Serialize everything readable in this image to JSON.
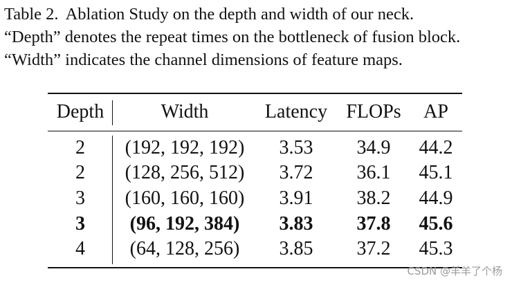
{
  "caption": {
    "label": "Table 2.",
    "line1": "Ablation Study on the depth and width of our neck.",
    "line2": "“Depth” denotes the repeat times on the bottleneck of fusion block.",
    "line3": "“Width” indicates the channel dimensions of feature maps."
  },
  "table": {
    "headers": [
      "Depth",
      "Width",
      "Latency",
      "FLOPs",
      "AP"
    ],
    "rows": [
      {
        "depth": "2",
        "width": "(192, 192, 192)",
        "latency": "3.53",
        "flops": "34.9",
        "ap": "44.2",
        "bold": false
      },
      {
        "depth": "2",
        "width": "(128, 256, 512)",
        "latency": "3.72",
        "flops": "36.1",
        "ap": "45.1",
        "bold": false
      },
      {
        "depth": "3",
        "width": "(160, 160, 160)",
        "latency": "3.91",
        "flops": "38.2",
        "ap": "44.9",
        "bold": false
      },
      {
        "depth": "3",
        "width": "(96, 192, 384)",
        "latency": "3.83",
        "flops": "37.8",
        "ap": "45.6",
        "bold": true
      },
      {
        "depth": "4",
        "width": "(64, 128, 256)",
        "latency": "3.85",
        "flops": "37.2",
        "ap": "45.3",
        "bold": false
      }
    ]
  },
  "watermark": "CSDN @羊羊了个杨"
}
